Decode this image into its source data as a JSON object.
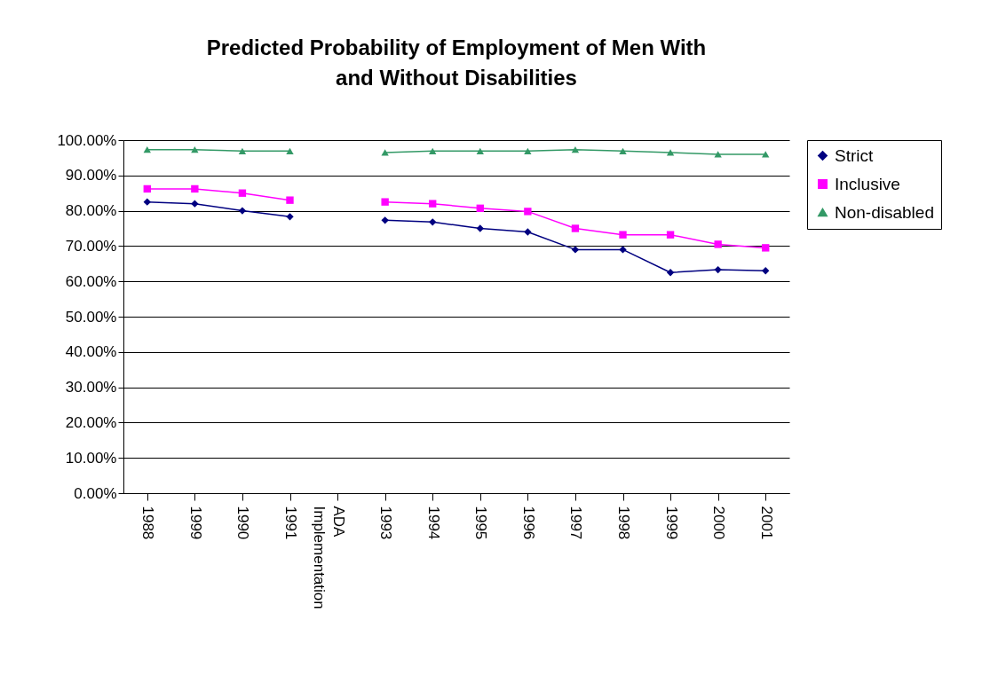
{
  "chart_data": {
    "type": "line",
    "title": "Predicted Probability of Employment of Men With and Without Disabilities",
    "categories": [
      "1988",
      "1999",
      "1990",
      "1991",
      "ADA Implementation",
      "1993",
      "1994",
      "1995",
      "1996",
      "1997",
      "1998",
      "1999",
      "2000",
      "2001"
    ],
    "series": [
      {
        "name": "Strict",
        "color": "#000080",
        "marker": "diamond",
        "values": [
          82.5,
          82,
          80,
          78.3,
          null,
          77.3,
          76.8,
          75,
          74,
          69,
          69,
          62.5,
          63.3,
          63
        ]
      },
      {
        "name": "Inclusive",
        "color": "#ff00ff",
        "marker": "square",
        "values": [
          86.2,
          86.2,
          85,
          83,
          null,
          82.5,
          82,
          80.7,
          79.8,
          75,
          73.2,
          73.2,
          70.5,
          69.5
        ]
      },
      {
        "name": "Non-disabled",
        "color": "#339966",
        "marker": "triangle",
        "values": [
          97.3,
          97.3,
          96.9,
          96.9,
          null,
          96.5,
          96.9,
          96.9,
          96.9,
          97.3,
          96.9,
          96.5,
          96,
          96
        ]
      }
    ],
    "ylim": [
      0,
      100
    ],
    "yticks": [
      {
        "value": 0,
        "label": "0.00%"
      },
      {
        "value": 10,
        "label": "10.00%"
      },
      {
        "value": 20,
        "label": "20.00%"
      },
      {
        "value": 30,
        "label": "30.00%"
      },
      {
        "value": 40,
        "label": "40.00%"
      },
      {
        "value": 50,
        "label": "50.00%"
      },
      {
        "value": 60,
        "label": "60.00%"
      },
      {
        "value": 70,
        "label": "70.00%"
      },
      {
        "value": 80,
        "label": "80.00%"
      },
      {
        "value": 90,
        "label": "90.00%"
      },
      {
        "value": 100,
        "label": "100.00%"
      }
    ],
    "grid": "y",
    "legend": "right"
  }
}
